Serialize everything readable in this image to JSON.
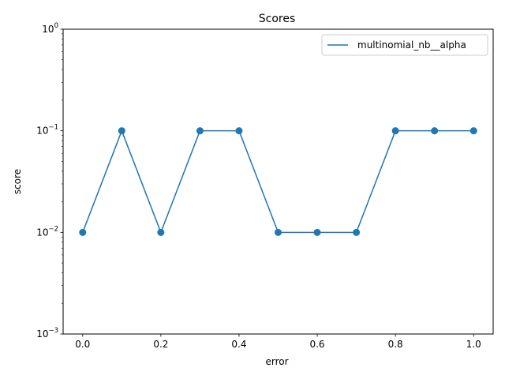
{
  "chart_data": {
    "type": "line",
    "title": "Scores",
    "xlabel": "error",
    "ylabel": "score",
    "x": [
      0.0,
      0.1,
      0.2,
      0.3,
      0.4,
      0.5,
      0.6,
      0.7,
      0.8,
      0.9,
      1.0
    ],
    "series": [
      {
        "name": "multinomial_nb__alpha",
        "values": [
          0.01,
          0.1,
          0.01,
          0.1,
          0.1,
          0.01,
          0.01,
          0.01,
          0.1,
          0.1,
          0.1
        ],
        "color": "#1f77b4",
        "marker": "circle"
      }
    ],
    "xlim": [
      -0.05,
      1.05
    ],
    "ylim": [
      0.001,
      1
    ],
    "yscale": "log",
    "x_ticks": [
      {
        "value": 0.0,
        "label": "0.0"
      },
      {
        "value": 0.2,
        "label": "0.2"
      },
      {
        "value": 0.4,
        "label": "0.4"
      },
      {
        "value": 0.6,
        "label": "0.6"
      },
      {
        "value": 0.8,
        "label": "0.8"
      },
      {
        "value": 1.0,
        "label": "1.0"
      }
    ],
    "y_ticks": [
      {
        "value": 0.001,
        "base": "10",
        "exp": "−3"
      },
      {
        "value": 0.01,
        "base": "10",
        "exp": "−2"
      },
      {
        "value": 0.1,
        "base": "10",
        "exp": "−1"
      },
      {
        "value": 1,
        "base": "10",
        "exp": "0"
      }
    ],
    "grid": false,
    "legend_position": "top-right"
  }
}
